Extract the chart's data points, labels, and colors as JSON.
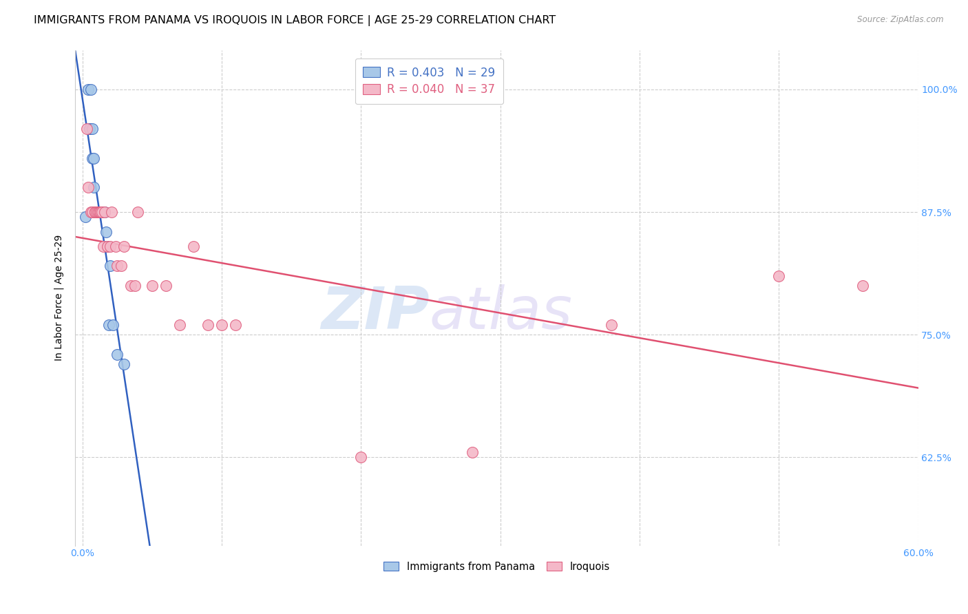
{
  "title": "IMMIGRANTS FROM PANAMA VS IROQUOIS IN LABOR FORCE | AGE 25-29 CORRELATION CHART",
  "source": "Source: ZipAtlas.com",
  "ylabel": "In Labor Force | Age 25-29",
  "xlim": [
    -0.005,
    0.6
  ],
  "ylim": [
    0.535,
    1.04
  ],
  "xticks": [
    0.0,
    0.1,
    0.2,
    0.3,
    0.4,
    0.5,
    0.6
  ],
  "xticklabels": [
    "0.0%",
    "",
    "",
    "",
    "",
    "",
    "60.0%"
  ],
  "yticks": [
    0.625,
    0.75,
    0.875,
    1.0
  ],
  "yticklabels": [
    "62.5%",
    "75.0%",
    "87.5%",
    "100.0%"
  ],
  "watermark_zip": "ZIP",
  "watermark_atlas": "atlas",
  "legend_labels": [
    "Immigrants from Panama",
    "Iroquois"
  ],
  "legend_R": [
    "0.403",
    "0.040"
  ],
  "legend_N": [
    "29",
    "37"
  ],
  "blue_fill": "#A8C8E8",
  "blue_edge": "#4472C4",
  "pink_fill": "#F4B8C8",
  "pink_edge": "#E06080",
  "blue_line": "#3060C0",
  "pink_line": "#E05070",
  "panama_x": [
    0.002,
    0.004,
    0.005,
    0.005,
    0.006,
    0.007,
    0.007,
    0.008,
    0.008,
    0.009,
    0.01,
    0.01,
    0.01,
    0.011,
    0.011,
    0.012,
    0.012,
    0.013,
    0.013,
    0.014,
    0.015,
    0.016,
    0.017,
    0.018,
    0.019,
    0.02,
    0.022,
    0.025,
    0.03
  ],
  "panama_y": [
    0.87,
    1.0,
    0.96,
    0.96,
    1.0,
    0.96,
    0.93,
    0.93,
    0.9,
    0.875,
    0.875,
    0.875,
    0.875,
    0.875,
    0.875,
    0.875,
    0.875,
    0.875,
    0.875,
    0.875,
    0.875,
    0.875,
    0.855,
    0.84,
    0.76,
    0.82,
    0.76,
    0.73,
    0.72
  ],
  "iroquois_x": [
    0.003,
    0.004,
    0.006,
    0.007,
    0.009,
    0.009,
    0.01,
    0.011,
    0.012,
    0.012,
    0.013,
    0.013,
    0.014,
    0.015,
    0.016,
    0.018,
    0.02,
    0.021,
    0.024,
    0.025,
    0.028,
    0.03,
    0.035,
    0.038,
    0.04,
    0.05,
    0.06,
    0.07,
    0.08,
    0.09,
    0.1,
    0.11,
    0.2,
    0.28,
    0.38,
    0.5,
    0.56
  ],
  "iroquois_y": [
    0.96,
    0.9,
    0.875,
    0.875,
    0.875,
    0.875,
    0.875,
    0.875,
    0.875,
    0.875,
    0.875,
    0.875,
    0.875,
    0.84,
    0.875,
    0.84,
    0.84,
    0.875,
    0.84,
    0.82,
    0.82,
    0.84,
    0.8,
    0.8,
    0.875,
    0.8,
    0.8,
    0.76,
    0.84,
    0.76,
    0.76,
    0.76,
    0.625,
    0.63,
    0.76,
    0.81,
    0.8
  ],
  "grid_color": "#CCCCCC",
  "bg_color": "#FFFFFF",
  "title_fontsize": 11.5,
  "axis_label_fontsize": 10,
  "tick_fontsize": 10,
  "tick_color_x": "#4499FF",
  "tick_color_y": "#4499FF",
  "legend_fontsize": 12
}
